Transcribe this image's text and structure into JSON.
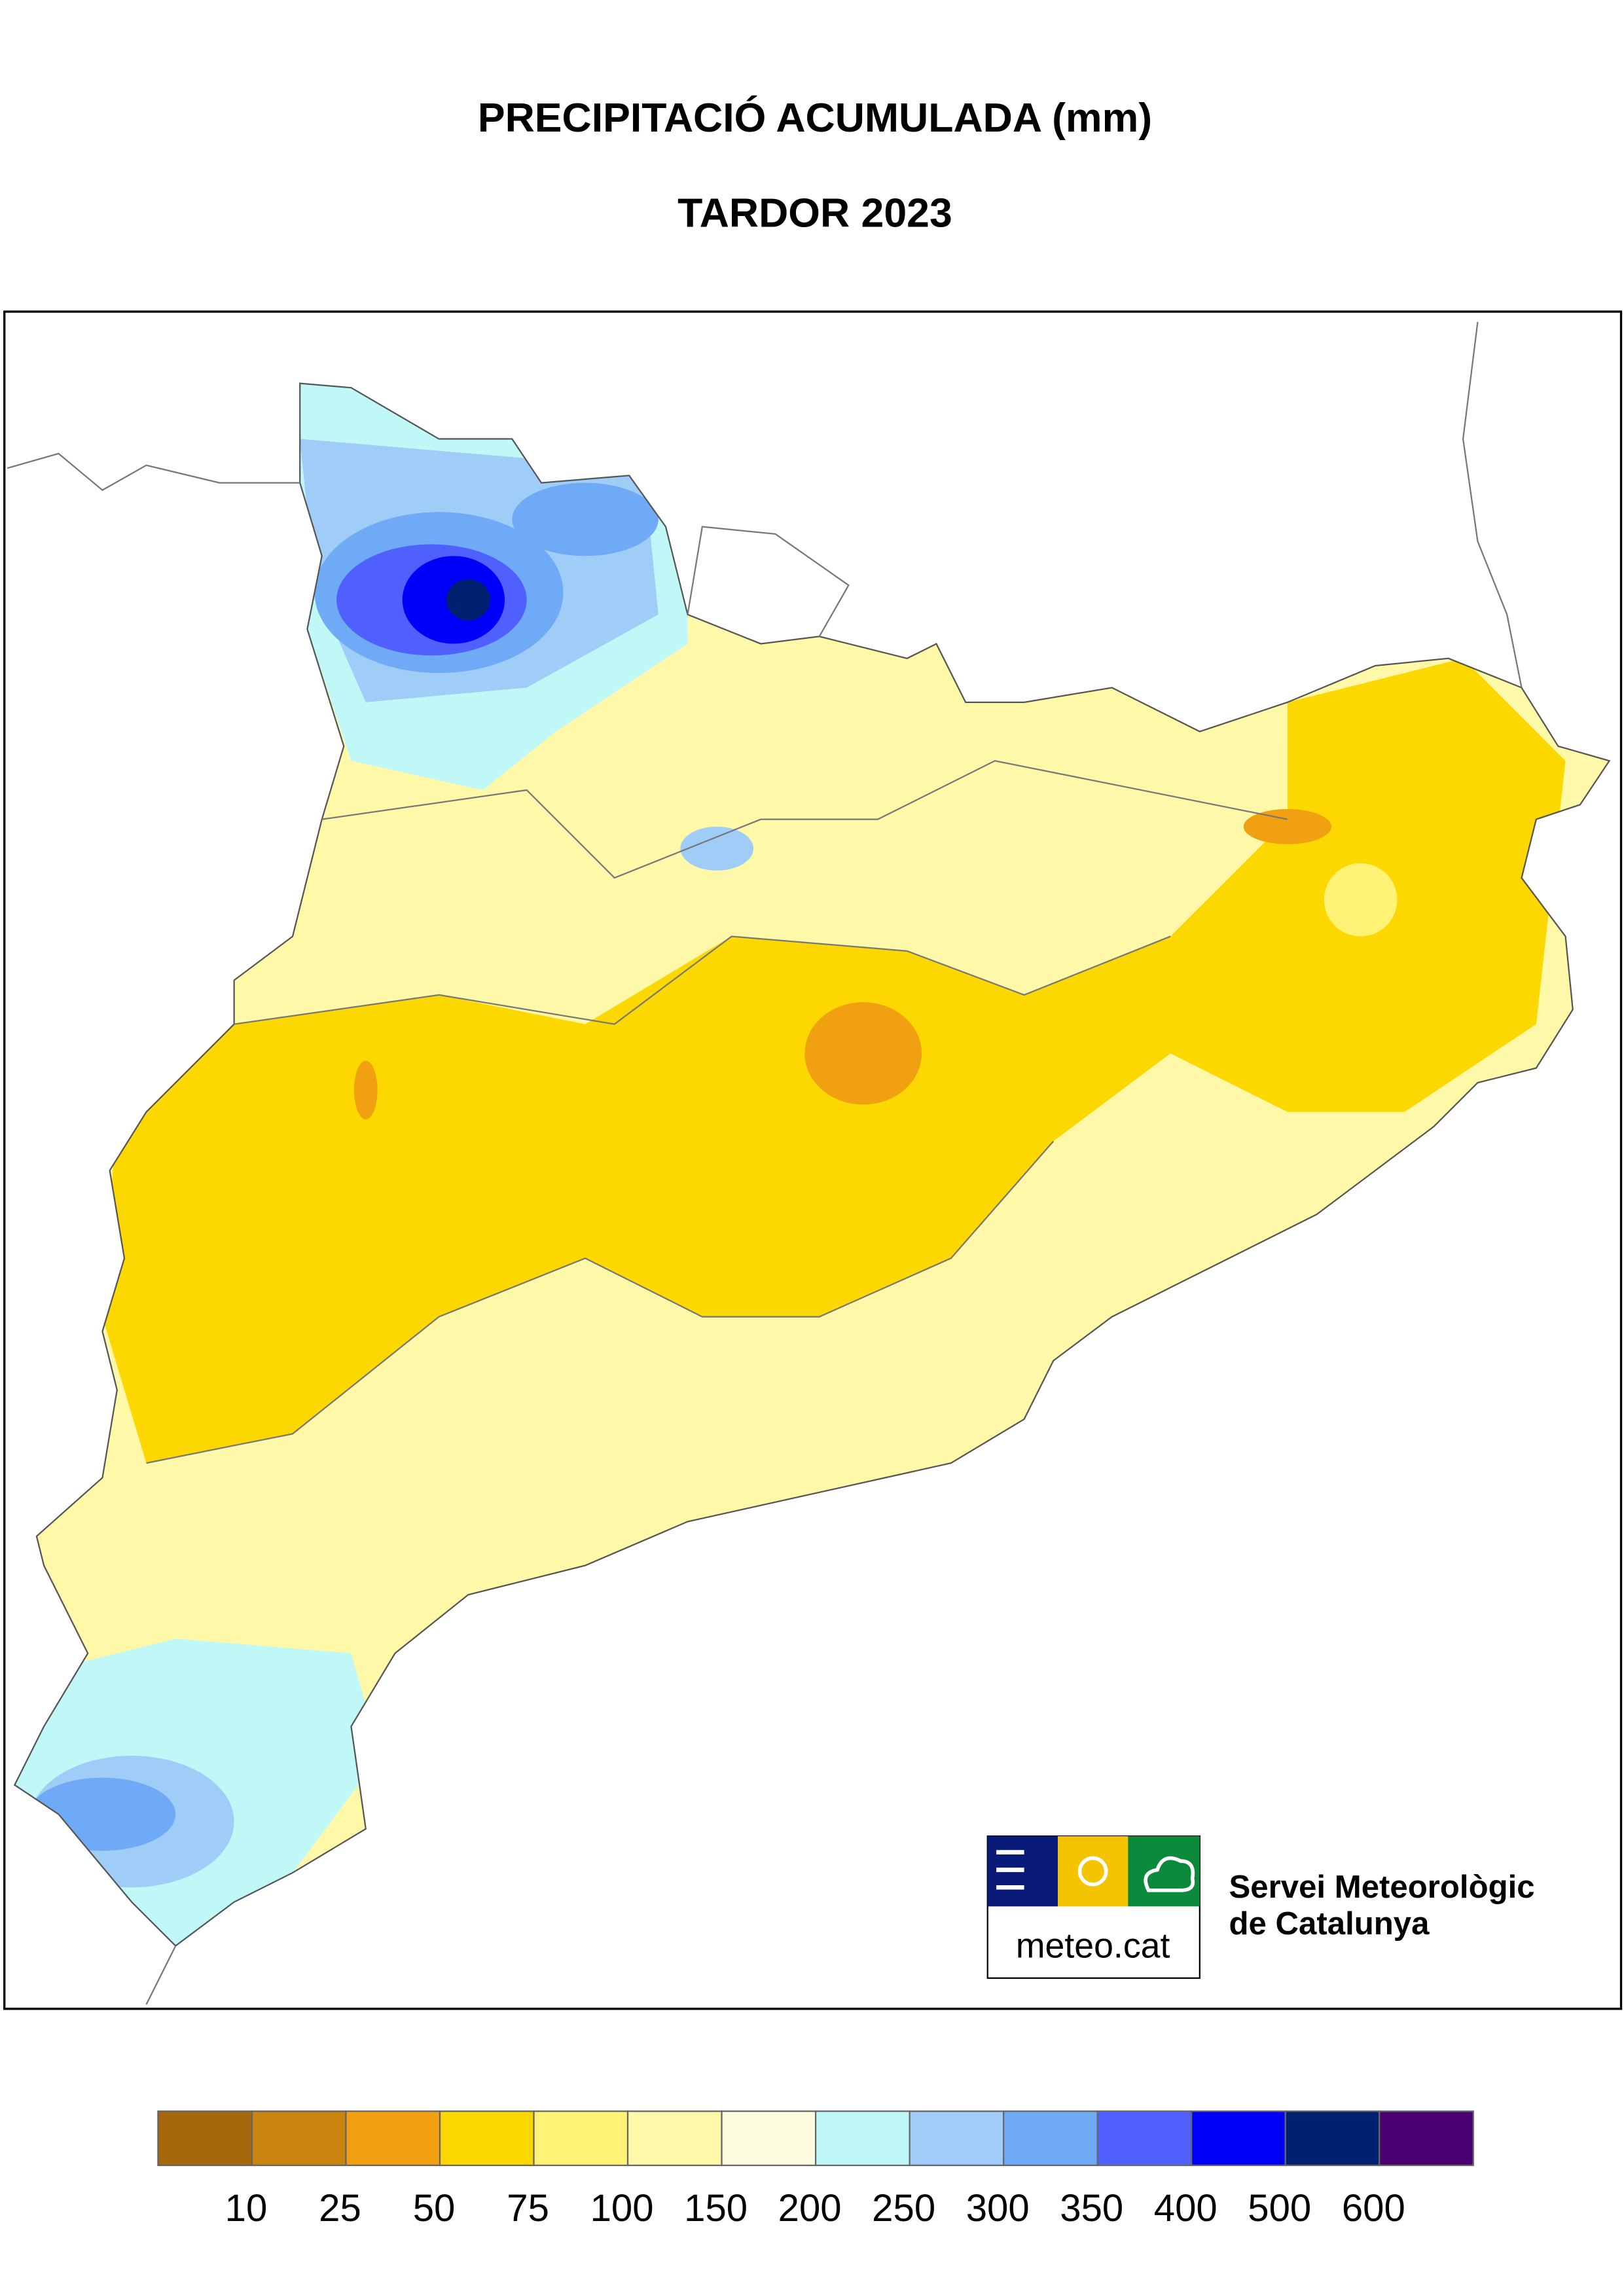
{
  "header": {
    "title": "PRECIPITACIÓ ACUMULADA (mm)",
    "subtitle": "TARDOR 2023"
  },
  "logo": {
    "brand": "meteo.cat",
    "organization": [
      "Servei Meteorològic",
      "de Catalunya"
    ]
  },
  "legend": {
    "colors": [
      "#a5680a",
      "#c98510",
      "#f0a010",
      "#fdd800",
      "#fff275",
      "#fff8a8",
      "#fffde0",
      "#c0f8f8",
      "#a0cdf8",
      "#6eaaf5",
      "#5060ff",
      "#0000fa",
      "#002070",
      "#4a0070"
    ],
    "labels": [
      10,
      25,
      50,
      75,
      100,
      150,
      200,
      250,
      300,
      350,
      400,
      500,
      600
    ]
  }
}
